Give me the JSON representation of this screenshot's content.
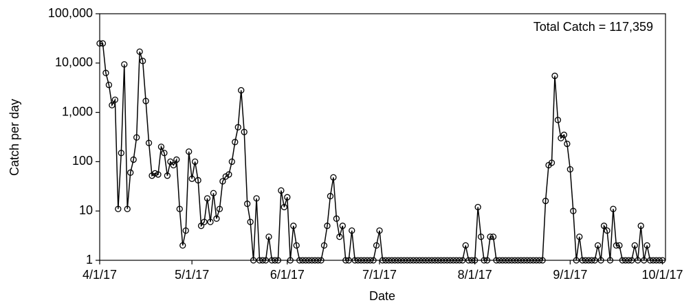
{
  "chart_data": {
    "type": "line",
    "title": "Total Catch = 117,359",
    "x_label": "Date",
    "y_label": "Catch per day",
    "yscale": "log",
    "color": "#000000",
    "marker": "open-circle",
    "xlim": [
      "4/1/17",
      "10/2/17"
    ],
    "xticks": [
      "4/1/17",
      "5/1/17",
      "6/1/17",
      "7/1/17",
      "8/1/17",
      "9/1/17",
      "10/1/17"
    ],
    "ylim": [
      1,
      100000
    ],
    "yticks": [
      1,
      10,
      100,
      {
        "value": 1000,
        "label": "1,000"
      },
      {
        "value": 10000,
        "label": "10,000"
      },
      {
        "value": 100000,
        "label": "100,000"
      }
    ],
    "x": [
      "4/1/17",
      "4/2/17",
      "4/3/17",
      "4/4/17",
      "4/5/17",
      "4/6/17",
      "4/7/17",
      "4/8/17",
      "4/9/17",
      "4/10/17",
      "4/11/17",
      "4/12/17",
      "4/13/17",
      "4/14/17",
      "4/15/17",
      "4/16/17",
      "4/17/17",
      "4/18/17",
      "4/19/17",
      "4/20/17",
      "4/21/17",
      "4/22/17",
      "4/23/17",
      "4/24/17",
      "4/25/17",
      "4/26/17",
      "4/27/17",
      "4/28/17",
      "4/29/17",
      "4/30/17",
      "5/1/17",
      "5/2/17",
      "5/3/17",
      "5/4/17",
      "5/5/17",
      "5/6/17",
      "5/7/17",
      "5/8/17",
      "5/9/17",
      "5/10/17",
      "5/11/17",
      "5/12/17",
      "5/13/17",
      "5/14/17",
      "5/15/17",
      "5/16/17",
      "5/17/17",
      "5/18/17",
      "5/19/17",
      "5/20/17",
      "5/21/17",
      "5/22/17",
      "5/23/17",
      "5/24/17",
      "5/25/17",
      "5/26/17",
      "5/27/17",
      "5/28/17",
      "5/29/17",
      "5/30/17",
      "5/31/17",
      "6/1/17",
      "6/2/17",
      "6/3/17",
      "6/4/17",
      "6/5/17",
      "6/6/17",
      "6/7/17",
      "6/8/17",
      "6/9/17",
      "6/10/17",
      "6/11/17",
      "6/12/17",
      "6/13/17",
      "6/14/17",
      "6/15/17",
      "6/16/17",
      "6/17/17",
      "6/18/17",
      "6/19/17",
      "6/20/17",
      "6/21/17",
      "6/22/17",
      "6/23/17",
      "6/24/17",
      "6/25/17",
      "6/26/17",
      "6/27/17",
      "6/28/17",
      "6/29/17",
      "6/30/17",
      "7/1/17",
      "7/2/17",
      "7/3/17",
      "7/4/17",
      "7/5/17",
      "7/6/17",
      "7/7/17",
      "7/8/17",
      "7/9/17",
      "7/10/17",
      "7/11/17",
      "7/12/17",
      "7/13/17",
      "7/14/17",
      "7/15/17",
      "7/16/17",
      "7/17/17",
      "7/18/17",
      "7/19/17",
      "7/20/17",
      "7/21/17",
      "7/22/17",
      "7/23/17",
      "7/24/17",
      "7/25/17",
      "7/26/17",
      "7/27/17",
      "7/28/17",
      "7/29/17",
      "7/30/17",
      "7/31/17",
      "8/1/17",
      "8/2/17",
      "8/3/17",
      "8/4/17",
      "8/5/17",
      "8/6/17",
      "8/7/17",
      "8/8/17",
      "8/9/17",
      "8/10/17",
      "8/11/17",
      "8/12/17",
      "8/13/17",
      "8/14/17",
      "8/15/17",
      "8/16/17",
      "8/17/17",
      "8/18/17",
      "8/19/17",
      "8/20/17",
      "8/21/17",
      "8/22/17",
      "8/23/17",
      "8/24/17",
      "8/25/17",
      "8/26/17",
      "8/27/17",
      "8/28/17",
      "8/29/17",
      "8/30/17",
      "8/31/17",
      "9/1/17",
      "9/2/17",
      "9/3/17",
      "9/4/17",
      "9/5/17",
      "9/6/17",
      "9/7/17",
      "9/8/17",
      "9/9/17",
      "9/10/17",
      "9/11/17",
      "9/12/17",
      "9/13/17",
      "9/14/17",
      "9/15/17",
      "9/16/17",
      "9/17/17",
      "9/18/17",
      "9/19/17",
      "9/20/17",
      "9/21/17",
      "9/22/17",
      "9/23/17",
      "9/24/17",
      "9/25/17",
      "9/26/17",
      "9/27/17",
      "9/28/17",
      "9/29/17",
      "9/30/17",
      "10/1/17"
    ],
    "values": [
      25000,
      25000,
      6300,
      3600,
      1400,
      1800,
      11,
      150,
      9400,
      11,
      60,
      110,
      310,
      17000,
      11000,
      1700,
      240,
      52,
      58,
      55,
      200,
      150,
      52,
      100,
      85,
      110,
      11,
      2,
      4,
      160,
      45,
      100,
      42,
      5,
      6,
      18,
      6,
      23,
      7,
      11,
      40,
      50,
      55,
      100,
      250,
      500,
      2800,
      400,
      14,
      6,
      1,
      18,
      1,
      1,
      1,
      3,
      1,
      1,
      1,
      26,
      12,
      19,
      1,
      5,
      2,
      1,
      1,
      1,
      1,
      1,
      1,
      1,
      1,
      2,
      5,
      20,
      48,
      7,
      3,
      5,
      1,
      1,
      4,
      1,
      1,
      1,
      1,
      1,
      1,
      1,
      2,
      4,
      1,
      1,
      1,
      1,
      1,
      1,
      1,
      1,
      1,
      1,
      1,
      1,
      1,
      1,
      1,
      1,
      1,
      1,
      1,
      1,
      1,
      1,
      1,
      1,
      1,
      1,
      1,
      2,
      1,
      1,
      1,
      12,
      3,
      1,
      1,
      3,
      3,
      1,
      1,
      1,
      1,
      1,
      1,
      1,
      1,
      1,
      1,
      1,
      1,
      1,
      1,
      1,
      1,
      16,
      85,
      95,
      5500,
      700,
      300,
      350,
      230,
      70,
      10,
      1,
      3,
      1,
      1,
      1,
      1,
      1,
      2,
      1,
      5,
      4,
      1,
      11,
      2,
      2,
      1,
      1,
      1,
      1,
      2,
      1,
      5,
      1,
      2,
      1,
      1,
      1,
      1,
      1
    ]
  }
}
